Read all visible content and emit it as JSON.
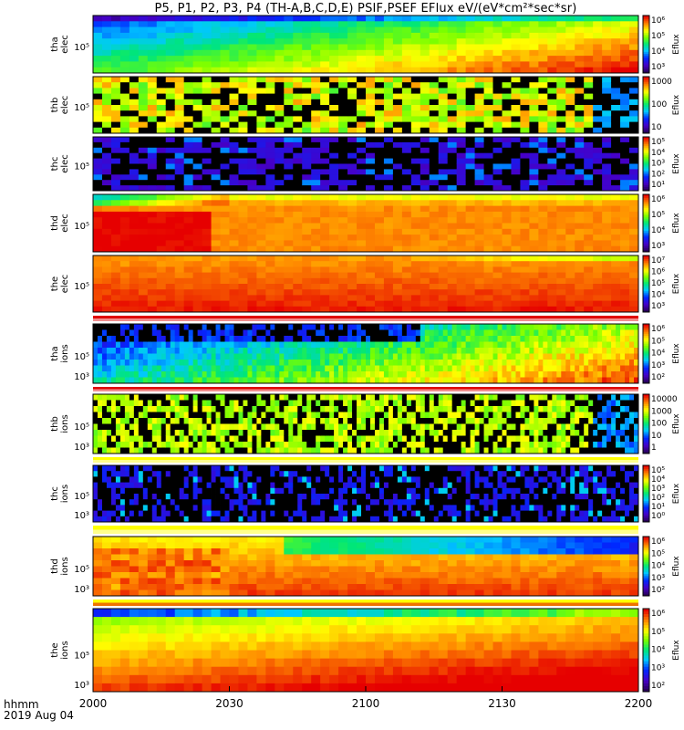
{
  "title": "P5, P1, P2, P3, P4 (TH-A,B,C,D,E) PSIF,PSEF EFlux eV/(eV*cm²*sec*sr)",
  "footer": {
    "time_format": "hhmm",
    "date": "2019 Aug 04"
  },
  "chart_data": {
    "type": "heatmap",
    "x_ticks": [
      "2000",
      "2030",
      "2100",
      "2130",
      "2200"
    ],
    "x_range": [
      "2000",
      "2200"
    ],
    "panels": [
      {
        "label": [
          "tha",
          "elec"
        ],
        "ytick": "10⁵",
        "colorbar_ticks": [
          "10⁶",
          "10⁵",
          "10⁴",
          "10³"
        ],
        "colorbar_label": "Eflux",
        "pattern": "tha_elec"
      },
      {
        "label": [
          "thb",
          "elec"
        ],
        "ytick": "10⁵",
        "colorbar_ticks": [
          "1000",
          "100",
          "10"
        ],
        "colorbar_label": "Eflux",
        "pattern": "thb_elec"
      },
      {
        "label": [
          "thc",
          "elec"
        ],
        "ytick": "10⁵",
        "colorbar_ticks": [
          "10⁵",
          "10⁴",
          "10³",
          "10²",
          "10¹"
        ],
        "colorbar_label": "Eflux",
        "pattern": "thc_elec"
      },
      {
        "label": [
          "thd",
          "elec"
        ],
        "ytick": "10⁵",
        "colorbar_ticks": [
          "10⁶",
          "10⁵",
          "10⁴",
          "10³"
        ],
        "colorbar_label": "Eflux",
        "pattern": "thd_elec"
      },
      {
        "label": [
          "the",
          "elec"
        ],
        "ytick": "10⁵",
        "colorbar_ticks": [
          "10⁷",
          "10⁶",
          "10⁵",
          "10⁴",
          "10³"
        ],
        "colorbar_label": "Eflux",
        "pattern": "the_elec"
      },
      {
        "label": [
          "tha",
          "ions"
        ],
        "ytick": "10⁵",
        "ytick2": "10³",
        "colorbar_ticks": [
          "10⁶",
          "10⁵",
          "10⁴",
          "10³",
          "10²"
        ],
        "colorbar_label": "Eflux",
        "pattern": "tha_ions"
      },
      {
        "label": [
          "thb",
          "ions"
        ],
        "ytick": "10⁵",
        "ytick2": "10³",
        "colorbar_ticks": [
          "10000",
          "1000",
          "100",
          "10",
          "1"
        ],
        "colorbar_label": "Eflux",
        "pattern": "thb_ions"
      },
      {
        "label": [
          "thc",
          "ions"
        ],
        "ytick": "10⁵",
        "ytick2": "10³",
        "colorbar_ticks": [
          "10⁵",
          "10⁴",
          "10³",
          "10²",
          "10¹",
          "10⁰"
        ],
        "colorbar_label": "Eflux",
        "pattern": "thc_ions"
      },
      {
        "label": [
          "thd",
          "ions"
        ],
        "ytick": "10⁵",
        "ytick2": "10³",
        "colorbar_ticks": [
          "10⁶",
          "10⁵",
          "10⁴",
          "10³",
          "10²"
        ],
        "colorbar_label": "Eflux",
        "pattern": "thd_ions"
      },
      {
        "label": [
          "the",
          "ions"
        ],
        "ytick": "10⁵",
        "ytick2": "10³",
        "colorbar_ticks": [
          "10⁶",
          "10⁵",
          "10⁴",
          "10³",
          "10²"
        ],
        "colorbar_label": "Eflux",
        "pattern": "the_ions"
      }
    ]
  }
}
